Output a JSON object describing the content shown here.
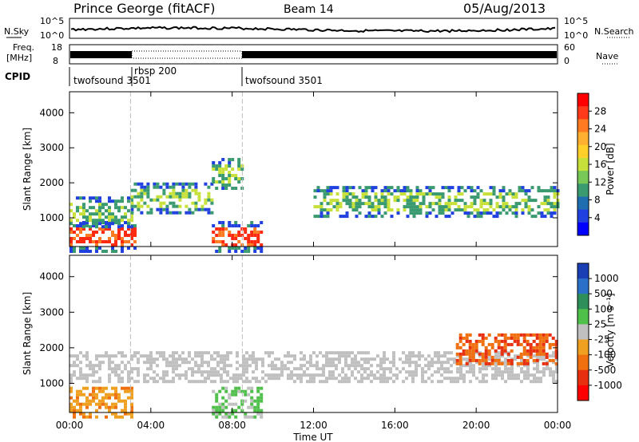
{
  "header": {
    "station": "Prince George (fitACF)",
    "beam": "Beam 14",
    "date": "05/Aug/2013"
  },
  "noise_panel": {
    "left_label": "N.Sky",
    "right_label": "N.Search",
    "left_ticks": [
      "10^5",
      "10^0"
    ],
    "right_ticks": [
      "10^5",
      "10^0"
    ]
  },
  "freq_panel": {
    "left_label_line1": "Freq.",
    "left_label_line2": "[MHz]",
    "left_ticks": [
      "18",
      "8"
    ],
    "right_label": "Nave",
    "right_ticks": [
      "60",
      "0"
    ]
  },
  "cpid_panel": {
    "label": "CPID",
    "segments": [
      {
        "name": "twofsound 3501",
        "start_hour": 0.0,
        "end_hour": 3.0
      },
      {
        "name": "rbsp 200",
        "start_hour": 3.0,
        "end_hour": 8.5
      },
      {
        "name": "twofsound 3501",
        "start_hour": 8.5,
        "end_hour": 24.0
      }
    ]
  },
  "power_colorbar": {
    "title": "Power [dB]",
    "ticks": [
      "28",
      "24",
      "20",
      "16",
      "12",
      "8",
      "4"
    ],
    "colors": [
      "#ff0000",
      "#ff3a1a",
      "#ff7a20",
      "#ffb030",
      "#ffd02a",
      "#c8e03a",
      "#78c858",
      "#3a9a70",
      "#1f6fb0",
      "#2040e0",
      "#0000ff"
    ]
  },
  "velocity_colorbar": {
    "title": "Velocity [m s⁻¹]",
    "ticks": [
      "1000",
      "500",
      "100",
      "25",
      "-25",
      "-100",
      "-500",
      "-1000"
    ],
    "colors": [
      "#1a3fb5",
      "#2a6fc8",
      "#2f8f5a",
      "#4fc04a",
      "#c0c0c0",
      "#f0a020",
      "#f07010",
      "#e83010",
      "#ff0000"
    ]
  },
  "chart_data": {
    "type": "heatmap",
    "x": {
      "label": "Time UT",
      "range_hours": [
        0,
        24
      ],
      "tick_labels": [
        "00:00",
        "04:00",
        "08:00",
        "12:00",
        "16:00",
        "20:00",
        "00:00"
      ]
    },
    "y": {
      "label": "Slant Range [km]",
      "range_km": [
        180,
        4600
      ],
      "tick_labels": [
        "1000",
        "2000",
        "3000",
        "4000"
      ]
    },
    "markers_hours": [
      3.0,
      8.5
    ],
    "power_features": [
      {
        "hour_start": 0.0,
        "hour_end": 3.2,
        "range_km": 500,
        "power_db": 28
      },
      {
        "hour_start": 0.0,
        "hour_end": 3.0,
        "range_km": 1200,
        "power_db": 16
      },
      {
        "hour_start": 3.0,
        "hour_end": 7.0,
        "range_km": 1600,
        "power_db": 12
      },
      {
        "hour_start": 7.0,
        "hour_end": 8.5,
        "range_km": 2300,
        "power_db": 16
      },
      {
        "hour_start": 7.0,
        "hour_end": 9.5,
        "range_km": 500,
        "power_db": 28
      },
      {
        "hour_start": 12.0,
        "hour_end": 24.0,
        "range_km": 1500,
        "power_db": 12
      }
    ],
    "velocity_features": [
      {
        "hour_start": 0.0,
        "hour_end": 3.0,
        "range_km": 500,
        "velocity_ms": -100
      },
      {
        "hour_start": 7.0,
        "hour_end": 9.5,
        "range_km": 500,
        "velocity_ms": 100
      },
      {
        "hour_start": 0.0,
        "hour_end": 24.0,
        "range_km": 1500,
        "velocity_ms": 0
      },
      {
        "hour_start": 19.0,
        "hour_end": 24.0,
        "range_km": 2000,
        "velocity_ms": -500
      }
    ]
  },
  "colors": {
    "frame": "#000000",
    "marker_line": "#bfbfbf"
  }
}
